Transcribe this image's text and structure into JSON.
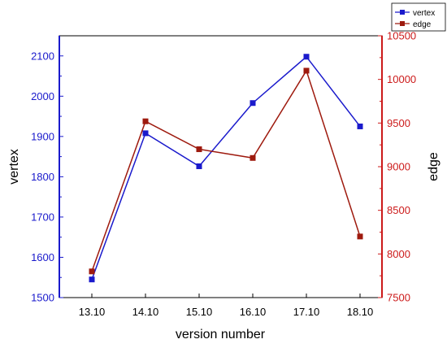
{
  "chart_data": {
    "type": "line",
    "categories": [
      "13.10",
      "14.10",
      "15.10",
      "16.10",
      "17.10",
      "18.10"
    ],
    "xlabel": "version number",
    "legend_position": "top-right",
    "grid": false,
    "series": [
      {
        "name": "vertex",
        "axis": "left",
        "color": "#1a1acc",
        "values": [
          1545,
          1908,
          1826,
          1983,
          2098,
          1925
        ]
      },
      {
        "name": "edge",
        "axis": "right",
        "color": "#9e1a0e",
        "values": [
          7800,
          9520,
          9200,
          9100,
          10100,
          8200
        ]
      }
    ],
    "y_left": {
      "label": "vertex",
      "ylim": [
        1500,
        2150
      ],
      "ticks": [
        "1500",
        "1600",
        "1700",
        "1800",
        "1900",
        "2000",
        "2100"
      ],
      "color": "#1a1acc"
    },
    "y_right": {
      "label": "edge",
      "ylim": [
        7500,
        10500
      ],
      "ticks": [
        "7500",
        "8000",
        "8500",
        "9000",
        "9500",
        "10000",
        "10500"
      ],
      "color": "#cc1a1a"
    }
  }
}
